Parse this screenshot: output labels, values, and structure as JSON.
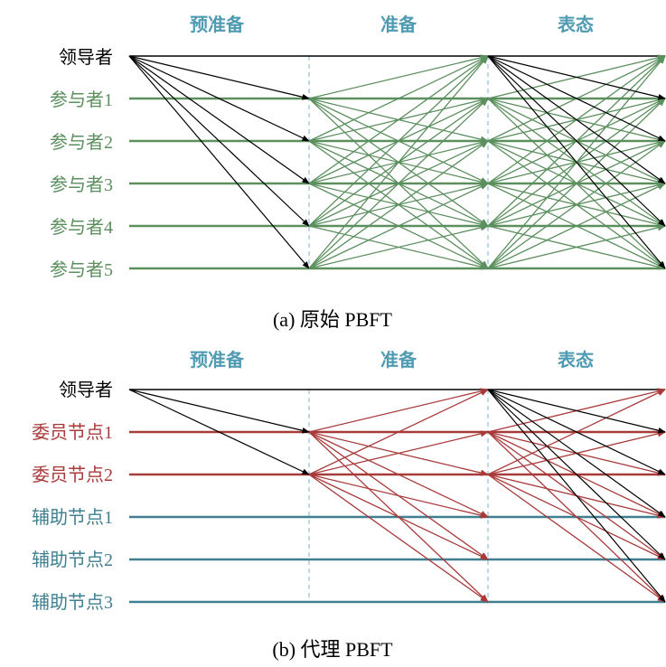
{
  "phases": [
    "预准备",
    "准备",
    "表态"
  ],
  "colors": {
    "leader": "#000000",
    "green": "#5b8f5e",
    "red": "#a83a3a",
    "teal": "#3f7f8f",
    "header": "#4f9bb2",
    "divider": "#7fb3d0"
  },
  "panel_a": {
    "caption": "(a) 原始 PBFT",
    "nodes": [
      {
        "label": "领导者",
        "role": "leader"
      },
      {
        "label": "参与者1",
        "role": "green"
      },
      {
        "label": "参与者2",
        "role": "green"
      },
      {
        "label": "参与者3",
        "role": "green"
      },
      {
        "label": "参与者4",
        "role": "green"
      },
      {
        "label": "参与者5",
        "role": "green"
      }
    ]
  },
  "panel_b": {
    "caption": "(b) 代理 PBFT",
    "nodes": [
      {
        "label": "领导者",
        "role": "leader"
      },
      {
        "label": "委员节点1",
        "role": "red"
      },
      {
        "label": "委员节点2",
        "role": "red"
      },
      {
        "label": "辅助节点1",
        "role": "teal"
      },
      {
        "label": "辅助节点2",
        "role": "teal"
      },
      {
        "label": "辅助节点3",
        "role": "teal"
      }
    ]
  }
}
